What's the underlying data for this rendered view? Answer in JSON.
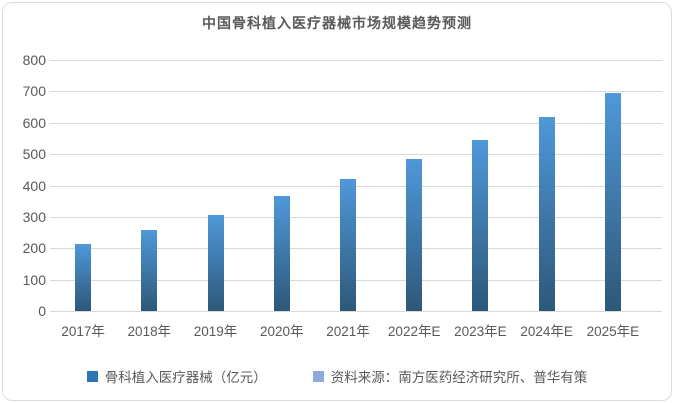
{
  "chart_data": {
    "type": "bar",
    "title": "中国骨科植入医疗器械市场规模趋势预测",
    "categories": [
      "2017年",
      "2018年",
      "2019年",
      "2020年",
      "2021年",
      "2022年E",
      "2023年E",
      "2024年E",
      "2025年E"
    ],
    "values": [
      215,
      258,
      307,
      365,
      422,
      483,
      545,
      618,
      696
    ],
    "series": [
      {
        "name": "骨科植入医疗器械（亿元）",
        "values": [
          215,
          258,
          307,
          365,
          422,
          483,
          545,
          618,
          696
        ]
      }
    ],
    "xlabel": "",
    "ylabel": "",
    "ylim": [
      0,
      800
    ],
    "ytick_interval": 100,
    "ytick_labels": [
      "800",
      "700",
      "600",
      "500",
      "400",
      "300",
      "200",
      "100",
      "0"
    ],
    "grid": true,
    "legend_position": "bottom"
  },
  "legend": {
    "items": [
      {
        "label": "骨科植入医疗器械（亿元）",
        "color": "#2E75B6"
      },
      {
        "label": "资料来源：南方医药经济研究所、普华有策",
        "color": "#8FAADC"
      }
    ]
  },
  "colors": {
    "bar_top": "#4F98DA",
    "bar_bottom": "#2D5878",
    "gridline": "#D9D9D9",
    "text": "#595959",
    "card_border": "#DCDCDC",
    "background": "#FFFFFF"
  }
}
